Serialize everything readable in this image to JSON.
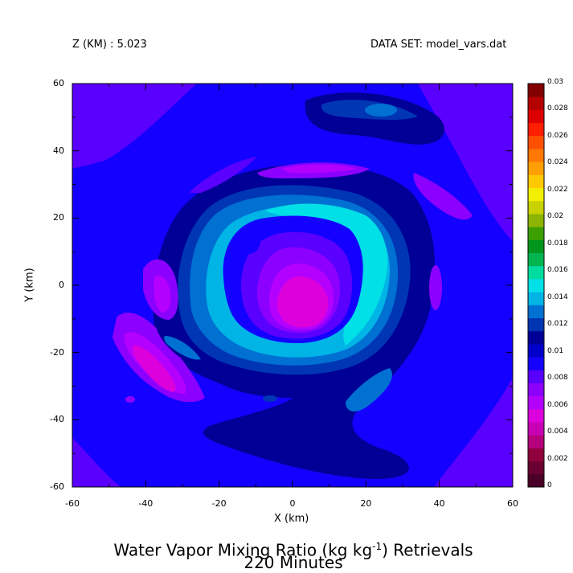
{
  "header": {
    "z_label": "Z (KM) : 5.023",
    "dataset_label": "DATA SET: model_vars.dat"
  },
  "chart_data": {
    "type": "heatmap",
    "title_line1_pre": "Water Vapor Mixing Ratio (kg kg",
    "title_line1_sup": "-1",
    "title_line1_post": ") Retrievals",
    "title_line2": "220 Minutes",
    "xlabel": "X (km)",
    "ylabel": "Y (km)",
    "xlim": [
      -60,
      60
    ],
    "ylim": [
      -60,
      60
    ],
    "x_ticks": [
      "-60",
      "-40",
      "-20",
      "0",
      "20",
      "40",
      "60"
    ],
    "y_ticks": [
      "-60",
      "-40",
      "-20",
      "0",
      "20",
      "40",
      "60"
    ],
    "colorbar": {
      "levels": [
        "0.03",
        "0.028",
        "0.026",
        "0.024",
        "0.022",
        "0.02",
        "0.018",
        "0.016",
        "0.014",
        "0.012",
        "0.01",
        "0.008",
        "0.006",
        "0.004",
        "0.002",
        "0"
      ],
      "colors": [
        "#4a0028",
        "#6a0032",
        "#90003c",
        "#b4007a",
        "#c800b4",
        "#dc00dc",
        "#b400ff",
        "#8c00ff",
        "#5a00ff",
        "#1400ff",
        "#0000c8",
        "#000096",
        "#0036b4",
        "#0070d2",
        "#00b4e6",
        "#00e0e6",
        "#00dca0",
        "#00b450",
        "#00961e",
        "#3ca000",
        "#8cb400",
        "#c8d200",
        "#f0f000",
        "#ffc800",
        "#ffa000",
        "#ff7800",
        "#ff5000",
        "#ff1e00",
        "#dc0000",
        "#b40000",
        "#820000"
      ]
    },
    "field_notes": "ring of high values (~0.012-0.014) around x=5,y=5 radius ~22 km; minimum (~0.004-0.005) near center; background ~0.006-0.008"
  }
}
